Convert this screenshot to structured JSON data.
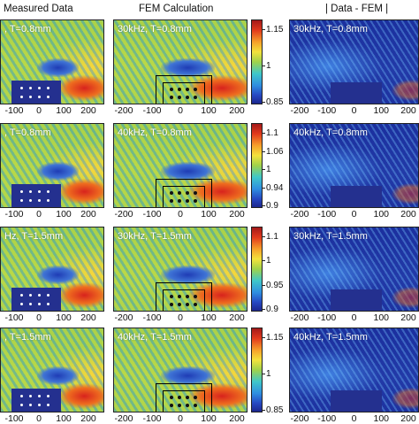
{
  "headers": {
    "measured": "Measured Data",
    "fem": "FEM Calculation",
    "diff": "| Data - FEM |"
  },
  "rows": [
    {
      "left_label": ", T=0.8mm",
      "mid_label": "30kHz, T=0.8mm",
      "right_label": "30kHz, T=0.8mm",
      "colorbar_ticks": [
        "1.15",
        "1",
        "0.85"
      ]
    },
    {
      "left_label": ", T=0.8mm",
      "mid_label": "40kHz, T=0.8mm",
      "right_label": "40kHz, T=0.8mm",
      "colorbar_ticks": [
        "1.1",
        "1.06",
        "1",
        "0.94",
        "0.9"
      ]
    },
    {
      "left_label": "Hz, T=1.5mm",
      "mid_label": "30kHz, T=1.5mm",
      "right_label": "30kHz, T=1.5mm",
      "colorbar_ticks": [
        "1.1",
        "1",
        "0.95",
        "0.9"
      ]
    },
    {
      "left_label": ", T=1.5mm",
      "mid_label": "40kHz, T=1.5mm",
      "right_label": "40kHz, T=1.5mm",
      "colorbar_ticks": [
        "1.15",
        "1",
        "0.85"
      ]
    }
  ],
  "x_ticks_left": [
    "-100",
    "0",
    "100",
    "200"
  ],
  "x_ticks_mid": [
    "-200",
    "-100",
    "0",
    "100",
    "200"
  ],
  "x_ticks_right": [
    "-200",
    "-100",
    "0",
    "100",
    "200"
  ]
}
